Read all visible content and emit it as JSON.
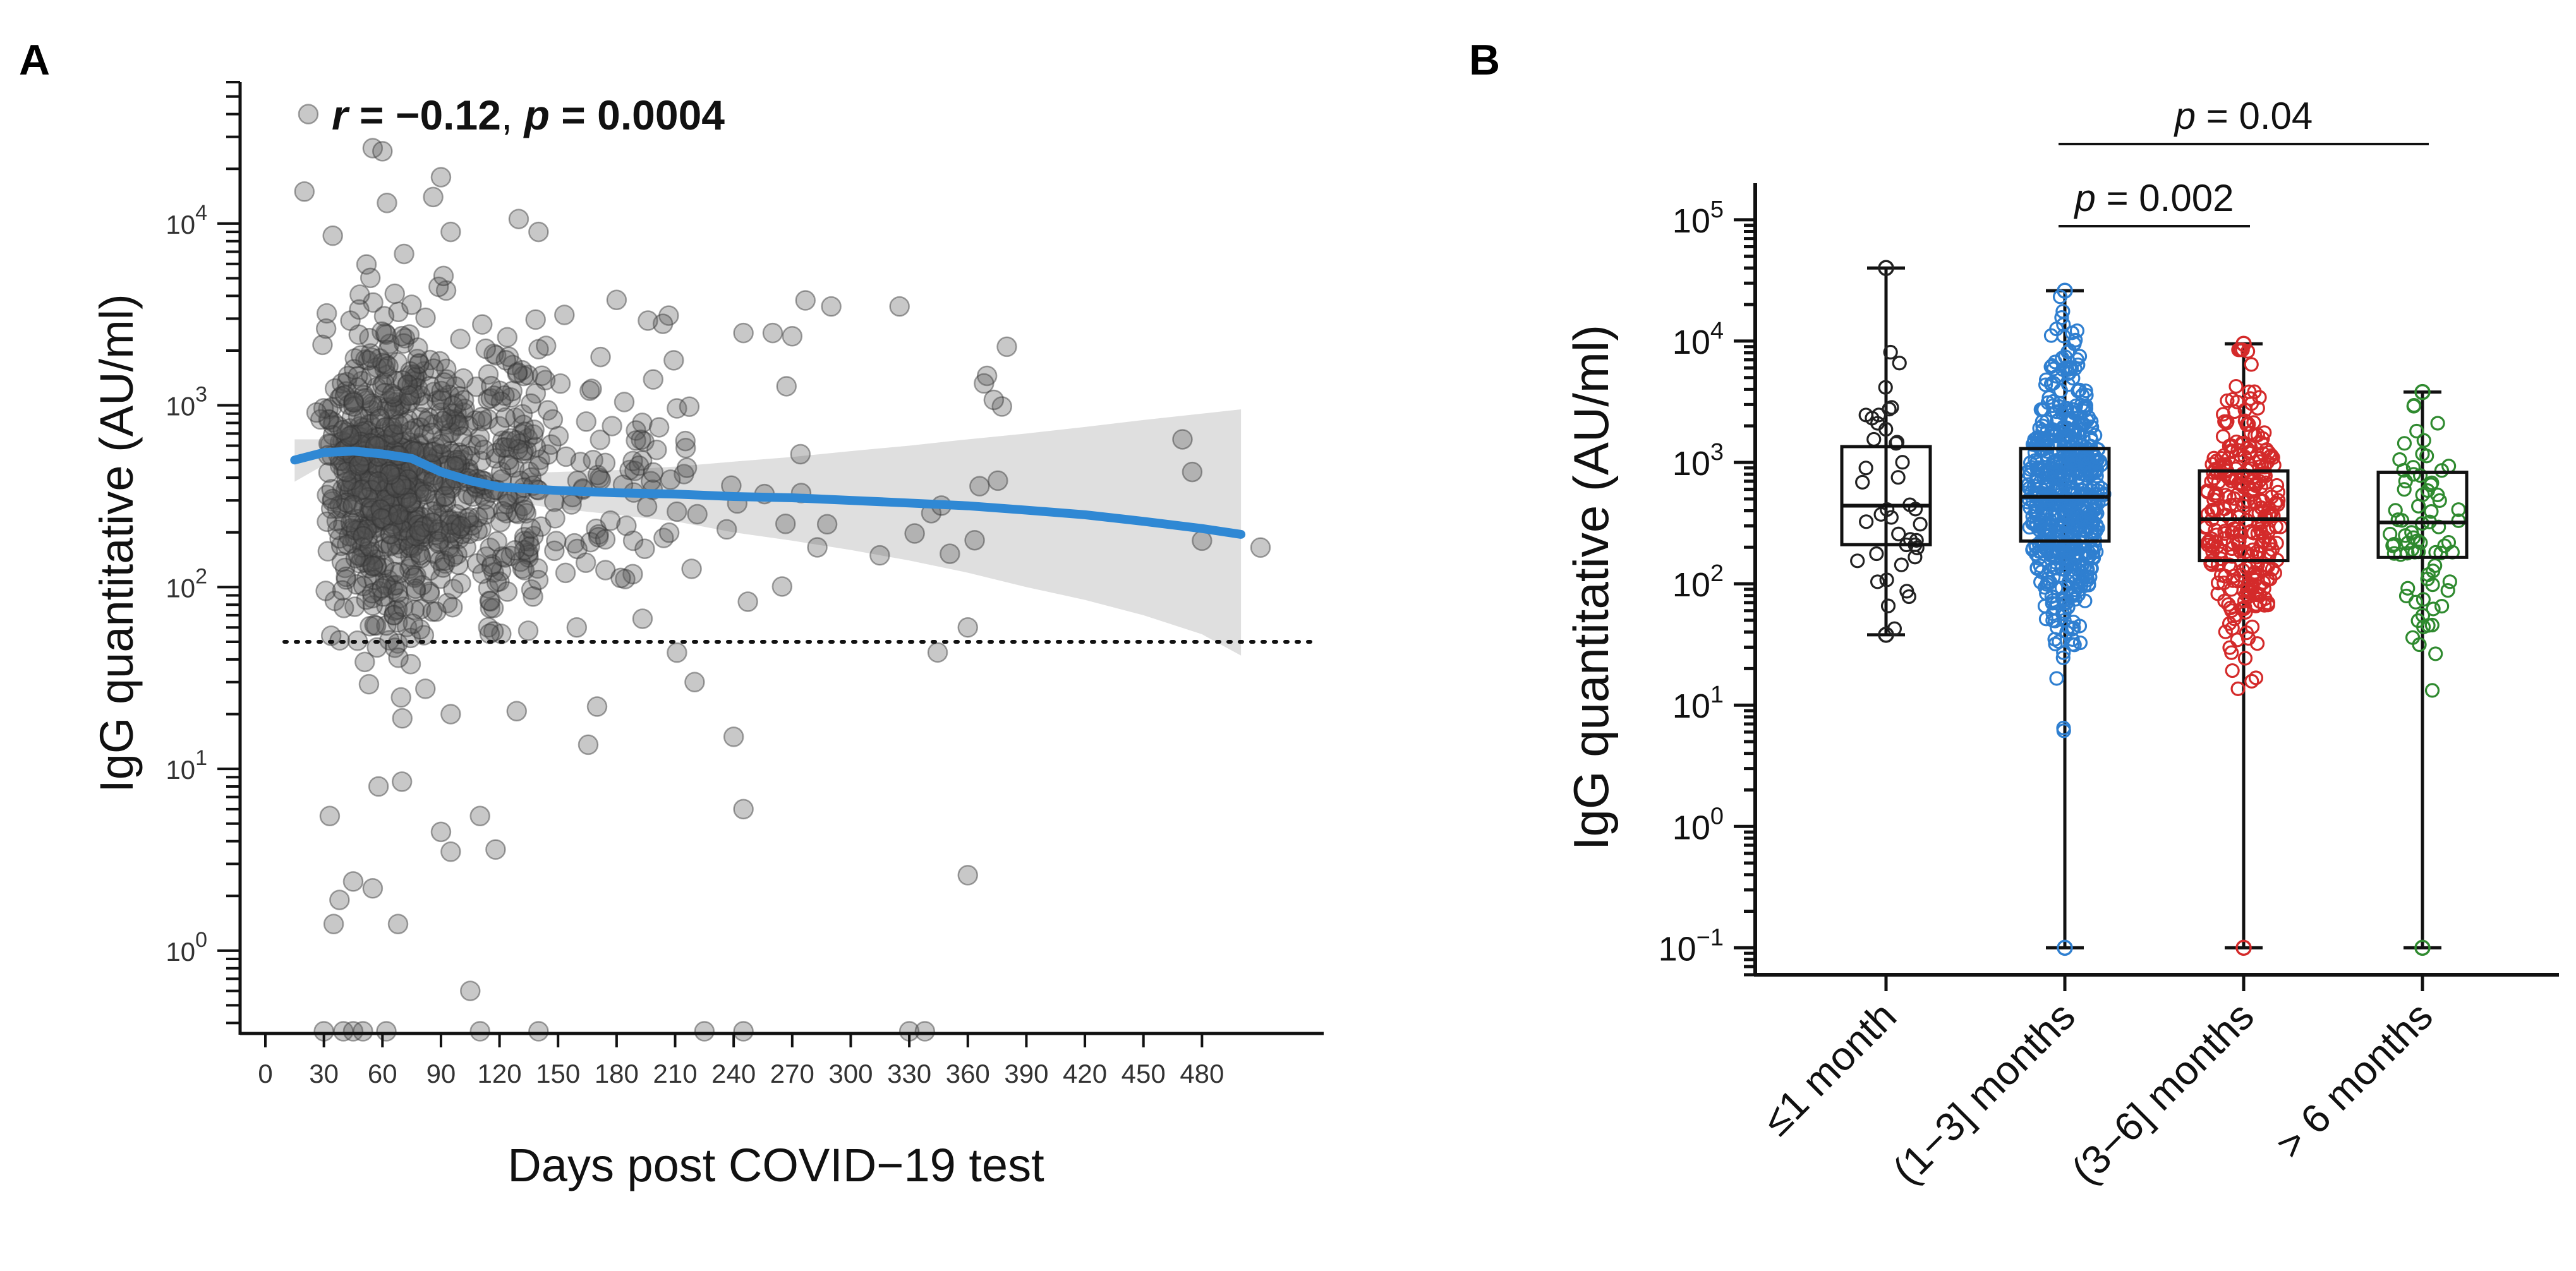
{
  "panel_a": {
    "letter": "A",
    "stat": {
      "r_sym": "r",
      "r_val": " = −0.12",
      "sep": ", ",
      "p_sym": "p",
      "p_val": " = 0.0004"
    },
    "chart_data": {
      "type": "scatter",
      "title": "",
      "xlabel": "Days post COVID−19 test",
      "ylabel": "IgG quantitative (AU/ml)",
      "xlim": [
        -5,
        535
      ],
      "ylim": [
        0.35,
        60000
      ],
      "yscale": "log",
      "xticks": [
        0,
        30,
        60,
        90,
        120,
        150,
        180,
        210,
        240,
        270,
        300,
        330,
        360,
        390,
        420,
        450,
        480
      ],
      "yticks": [
        {
          "value": 1,
          "base": "10",
          "exp": "0"
        },
        {
          "value": 10,
          "base": "10",
          "exp": "1"
        },
        {
          "value": 100,
          "base": "10",
          "exp": "2"
        },
        {
          "value": 1000,
          "base": "10",
          "exp": "3"
        },
        {
          "value": 10000,
          "base": "10",
          "exp": "4"
        }
      ],
      "threshold_line": 50,
      "point_color": "#555555",
      "trend_color": "#2f88d4",
      "ci_color": "#d9d9d9",
      "trend": {
        "x": [
          15,
          30,
          45,
          60,
          75,
          90,
          105,
          120,
          150,
          180,
          210,
          240,
          270,
          300,
          330,
          360,
          390,
          420,
          450,
          480,
          500
        ],
        "y": [
          500,
          550,
          560,
          540,
          510,
          430,
          385,
          355,
          340,
          330,
          325,
          315,
          310,
          300,
          290,
          280,
          265,
          250,
          230,
          210,
          195
        ],
        "lower": [
          380,
          470,
          480,
          470,
          440,
          370,
          330,
          300,
          270,
          250,
          230,
          200,
          180,
          160,
          140,
          120,
          100,
          85,
          70,
          55,
          42
        ],
        "upper": [
          650,
          650,
          660,
          630,
          600,
          510,
          450,
          420,
          430,
          440,
          460,
          490,
          520,
          560,
          600,
          650,
          700,
          760,
          830,
          900,
          950
        ]
      },
      "highlights": [
        {
          "x": 22,
          "y": 40000
        },
        {
          "x": 20,
          "y": 15000
        },
        {
          "x": 55,
          "y": 26000
        },
        {
          "x": 60,
          "y": 25000
        },
        {
          "x": 90,
          "y": 18000
        },
        {
          "x": 86,
          "y": 14000
        },
        {
          "x": 95,
          "y": 9000
        },
        {
          "x": 140,
          "y": 9000
        },
        {
          "x": 180,
          "y": 3800
        },
        {
          "x": 270,
          "y": 2400
        },
        {
          "x": 290,
          "y": 3500
        },
        {
          "x": 325,
          "y": 3500
        },
        {
          "x": 380,
          "y": 2100
        },
        {
          "x": 245,
          "y": 2500
        },
        {
          "x": 260,
          "y": 2500
        },
        {
          "x": 470,
          "y": 650
        },
        {
          "x": 475,
          "y": 430
        },
        {
          "x": 480,
          "y": 180
        },
        {
          "x": 510,
          "y": 165
        },
        {
          "x": 360,
          "y": 60
        },
        {
          "x": 360,
          "y": 2.6
        },
        {
          "x": 240,
          "y": 15
        },
        {
          "x": 245,
          "y": 6
        },
        {
          "x": 220,
          "y": 30
        },
        {
          "x": 170,
          "y": 22
        },
        {
          "x": 95,
          "y": 20
        },
        {
          "x": 90,
          "y": 4.5
        },
        {
          "x": 95,
          "y": 3.5
        },
        {
          "x": 110,
          "y": 5.5
        },
        {
          "x": 118,
          "y": 3.6
        },
        {
          "x": 70,
          "y": 8.5
        },
        {
          "x": 58,
          "y": 8
        },
        {
          "x": 33,
          "y": 5.5
        },
        {
          "x": 45,
          "y": 2.4
        },
        {
          "x": 55,
          "y": 2.2
        },
        {
          "x": 38,
          "y": 1.9
        },
        {
          "x": 35,
          "y": 1.4
        },
        {
          "x": 68,
          "y": 1.4
        },
        {
          "x": 105,
          "y": 0.6
        },
        {
          "x": 40,
          "y": 0.36
        },
        {
          "x": 30,
          "y": 0.36
        },
        {
          "x": 45,
          "y": 0.36
        },
        {
          "x": 50,
          "y": 0.36
        },
        {
          "x": 62,
          "y": 0.36
        },
        {
          "x": 110,
          "y": 0.36
        },
        {
          "x": 140,
          "y": 0.36
        },
        {
          "x": 225,
          "y": 0.36
        },
        {
          "x": 245,
          "y": 0.36
        },
        {
          "x": 330,
          "y": 0.36
        },
        {
          "x": 338,
          "y": 0.36
        }
      ],
      "seed": 1234,
      "n_points": 980
    }
  },
  "panel_b": {
    "letter": "B",
    "chart_data": {
      "type": "box",
      "title": "",
      "xlabel": "",
      "ylabel": "IgG quantitative (AU/ml)",
      "yscale": "log",
      "ylim": [
        0.06,
        200000
      ],
      "yticks": [
        {
          "value": 0.1,
          "base": "10",
          "exp": "−1"
        },
        {
          "value": 1,
          "base": "10",
          "exp": "0"
        },
        {
          "value": 10,
          "base": "10",
          "exp": "1"
        },
        {
          "value": 100,
          "base": "10",
          "exp": "2"
        },
        {
          "value": 1000,
          "base": "10",
          "exp": "3"
        },
        {
          "value": 10000,
          "base": "10",
          "exp": "4"
        },
        {
          "value": 100000,
          "base": "10",
          "exp": "5"
        }
      ],
      "categories": [
        "≤1 month",
        "(1−3] months",
        "(3−6] months",
        "> 6 months"
      ],
      "series": [
        {
          "name": "≤1 month",
          "color": "#222222",
          "min": 38,
          "q1": 210,
          "median": 440,
          "q3": 1350,
          "max": 40000,
          "n": 40
        },
        {
          "name": "(1−3] months",
          "color": "#2f7fd0",
          "min": 0.1,
          "q1": 225,
          "median": 520,
          "q3": 1300,
          "max": 26000,
          "n": 620
        },
        {
          "name": "(3−6] months",
          "color": "#d42a2a",
          "min": 0.1,
          "q1": 155,
          "median": 340,
          "q3": 850,
          "max": 9500,
          "n": 300
        },
        {
          "name": "> 6 months",
          "color": "#2f8a2f",
          "min": 0.1,
          "q1": 165,
          "median": 320,
          "q3": 830,
          "max": 3800,
          "n": 75
        }
      ],
      "comparisons": [
        {
          "from": 1,
          "to": 2,
          "label": "p = 0.002",
          "p_sym": "p",
          "p_val": " = 0.002"
        },
        {
          "from": 1,
          "to": 3,
          "label": "p = 0.04",
          "p_sym": "p",
          "p_val": " = 0.04"
        }
      ]
    }
  }
}
